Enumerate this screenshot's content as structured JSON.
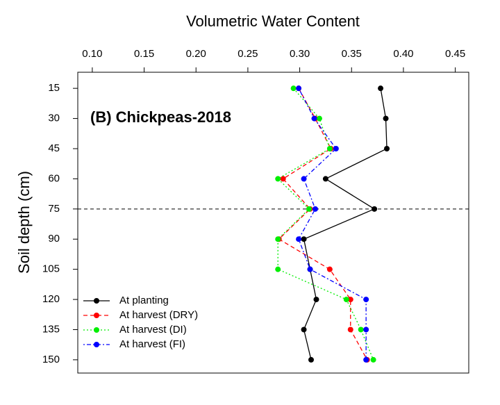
{
  "chart_data": {
    "type": "line",
    "xlabel": "Volumetric Water Content",
    "ylabel": "Soil depth (cm)",
    "annotation": "(B) Chickpeas-2018",
    "y": [
      15,
      30,
      45,
      60,
      75,
      90,
      105,
      120,
      135,
      150
    ],
    "xlim": [
      0.086,
      0.463
    ],
    "xticks": [
      {
        "value": 0.1,
        "label": "0.10"
      },
      0.15,
      {
        "value": 0.2,
        "label": "0.20"
      },
      0.25,
      {
        "value": 0.3,
        "label": "0.30"
      },
      0.35,
      {
        "value": 0.4,
        "label": "0.40"
      },
      0.45
    ],
    "ylim": [
      7,
      156.6
    ],
    "yticks": [
      15,
      30,
      45,
      60,
      75,
      90,
      105,
      120,
      135,
      150
    ],
    "y_reversed": true,
    "hline": 75,
    "legend": "bottom-left",
    "series": [
      {
        "name": "At planting",
        "color": "#000000",
        "line_style": "solid",
        "values": [
          0.378,
          0.383,
          0.384,
          0.325,
          0.372,
          0.304,
          0.31,
          0.316,
          0.304,
          0.311
        ]
      },
      {
        "name": "At harvest (DRY)",
        "color": "#ff0000",
        "line_style": "dashed",
        "values": [
          0.299,
          0.315,
          0.33,
          0.284,
          0.31,
          0.28,
          0.329,
          0.349,
          0.349,
          0.365
        ]
      },
      {
        "name": "At harvest (DI)",
        "color": "#00ee00",
        "line_style": "dotted",
        "values": [
          0.294,
          0.319,
          0.329,
          0.279,
          0.309,
          0.279,
          0.279,
          0.345,
          0.359,
          0.371
        ]
      },
      {
        "name": "At harvest (FI)",
        "color": "#0000ff",
        "line_style": "dashdot",
        "values": [
          0.299,
          0.314,
          0.335,
          0.304,
          0.315,
          0.299,
          0.31,
          0.364,
          0.364,
          0.364
        ]
      }
    ]
  }
}
